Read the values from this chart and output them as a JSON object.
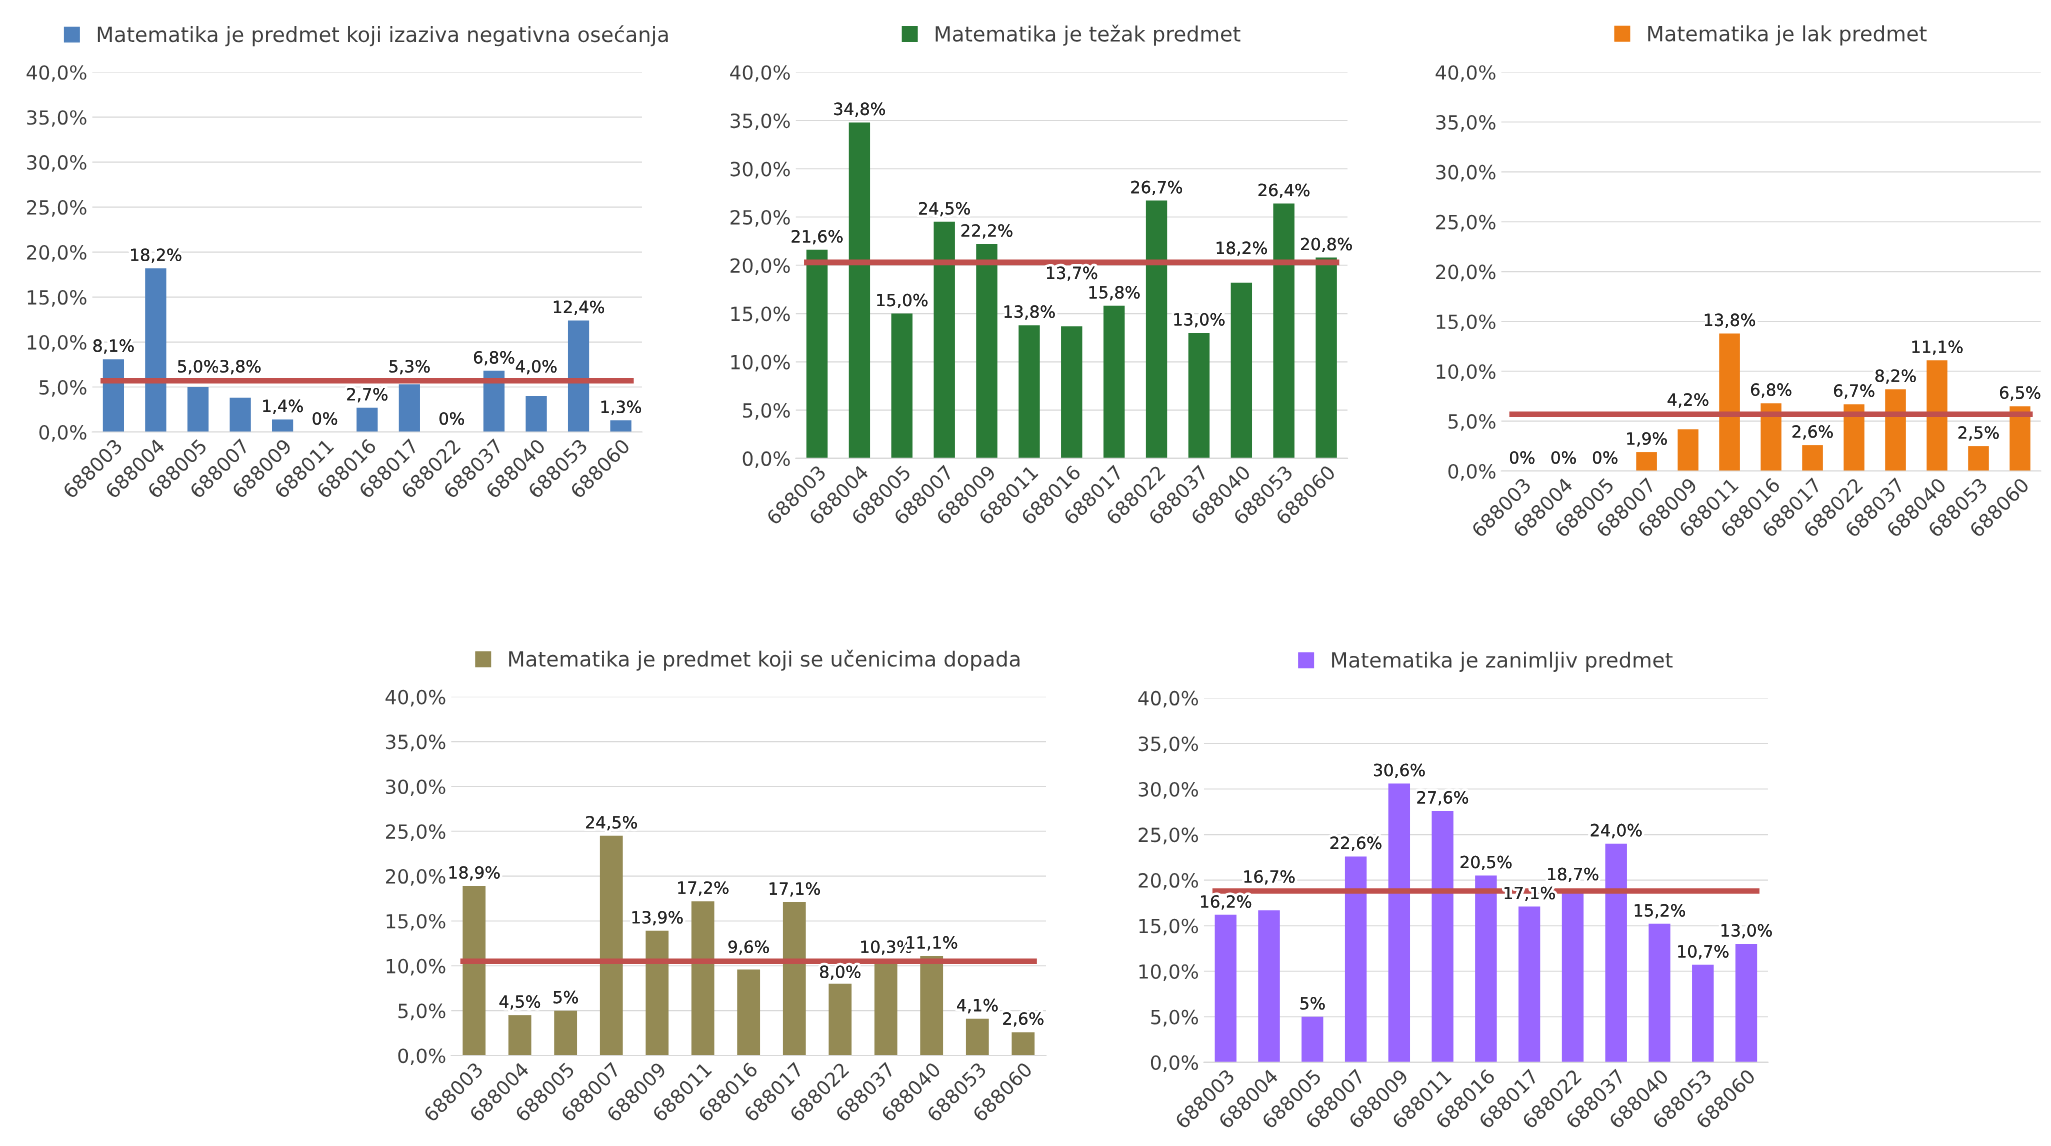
{
  "chart_data": [
    {
      "type": "bar",
      "categories": [
        "688003",
        "688004",
        "688005",
        "688007",
        "688009",
        "688011",
        "688016",
        "688017",
        "688022",
        "688037",
        "688040",
        "688053",
        "688060"
      ],
      "series": [
        {
          "name": "Matematika je predmet koji izaziva negativna osećanja",
          "color": "#4f81bd",
          "values": [
            8.1,
            18.2,
            5.0,
            3.8,
            1.4,
            0,
            2.7,
            5.3,
            0,
            6.8,
            4.0,
            12.4,
            1.3
          ],
          "value_labels": [
            "8,1%",
            "18,2%",
            "5,0%",
            "3,8%",
            "1,4%",
            "0%",
            "2,7%",
            "5,3%",
            "0%",
            "6,8%",
            "4,0%",
            "12,4%",
            "1,3%"
          ]
        }
      ],
      "ylim": [
        0,
        40
      ],
      "yticks": [
        {
          "value": 0,
          "label": "0,0%"
        },
        {
          "value": 5,
          "label": "5,0%"
        },
        {
          "value": 10,
          "label": "10,0%"
        },
        {
          "value": 15,
          "label": "15,0%"
        },
        {
          "value": 20,
          "label": "20,0%"
        },
        {
          "value": 25,
          "label": "25,0%"
        },
        {
          "value": 30,
          "label": "30,0%"
        },
        {
          "value": 35,
          "label": "35,0%"
        },
        {
          "value": 40,
          "label": "40,0%"
        }
      ],
      "grid": "y",
      "legend": "top",
      "ref_lines": [
        {
          "axis": "y",
          "value": 5.7,
          "color": "#c0504d"
        }
      ]
    },
    {
      "type": "bar",
      "categories": [
        "688003",
        "688004",
        "688005",
        "688007",
        "688009",
        "688011",
        "688016",
        "688017",
        "688022",
        "688037",
        "688040",
        "688053",
        "688060"
      ],
      "series": [
        {
          "name": "Matematika je težak predmet",
          "color": "#2a7b36",
          "values": [
            21.6,
            34.8,
            15.0,
            24.5,
            22.2,
            13.8,
            13.7,
            15.8,
            26.7,
            13.0,
            18.2,
            26.4,
            20.8
          ],
          "value_labels": [
            "21,6%",
            "34,8%",
            "15,0%",
            "24,5%",
            "22,2%",
            "13,8%",
            "13,7%",
            "15,8%",
            "26,7%",
            "13,0%",
            "18,2%",
            "26,4%",
            "20,8%"
          ]
        }
      ],
      "ylim": [
        0,
        40
      ],
      "yticks": [
        {
          "value": 0,
          "label": "0,0%"
        },
        {
          "value": 5,
          "label": "5,0%"
        },
        {
          "value": 10,
          "label": "10,0%"
        },
        {
          "value": 15,
          "label": "15,0%"
        },
        {
          "value": 20,
          "label": "20,0%"
        },
        {
          "value": 25,
          "label": "25,0%"
        },
        {
          "value": 30,
          "label": "30,0%"
        },
        {
          "value": 35,
          "label": "35,0%"
        },
        {
          "value": 40,
          "label": "40,0%"
        }
      ],
      "grid": "y",
      "legend": "top",
      "ref_lines": [
        {
          "axis": "y",
          "value": 20.3,
          "color": "#c0504d"
        }
      ]
    },
    {
      "type": "bar",
      "categories": [
        "688003",
        "688004",
        "688005",
        "688007",
        "688009",
        "688011",
        "688016",
        "688017",
        "688022",
        "688037",
        "688040",
        "688053",
        "688060"
      ],
      "series": [
        {
          "name": "Matematika je lak predmet",
          "color": "#ed7d15",
          "values": [
            0,
            0,
            0,
            1.9,
            4.2,
            13.8,
            6.8,
            2.6,
            6.7,
            8.2,
            11.1,
            2.5,
            6.5
          ],
          "value_labels": [
            "0%",
            "0%",
            "0%",
            "1,9%",
            "4,2%",
            "13,8%",
            "6,8%",
            "2,6%",
            "6,7%",
            "8,2%",
            "11,1%",
            "2,5%",
            "6,5%"
          ]
        }
      ],
      "ylim": [
        0,
        40
      ],
      "yticks": [
        {
          "value": 0,
          "label": "0,0%"
        },
        {
          "value": 5,
          "label": "5,0%"
        },
        {
          "value": 10,
          "label": "10,0%"
        },
        {
          "value": 15,
          "label": "15,0%"
        },
        {
          "value": 20,
          "label": "20,0%"
        },
        {
          "value": 25,
          "label": "25,0%"
        },
        {
          "value": 30,
          "label": "30,0%"
        },
        {
          "value": 35,
          "label": "35,0%"
        },
        {
          "value": 40,
          "label": "40,0%"
        }
      ],
      "grid": "y",
      "legend": "top",
      "ref_lines": [
        {
          "axis": "y",
          "value": 5.7,
          "color": "#c0504d"
        }
      ]
    },
    {
      "type": "bar",
      "categories": [
        "688003",
        "688004",
        "688005",
        "688007",
        "688009",
        "688011",
        "688016",
        "688017",
        "688022",
        "688037",
        "688040",
        "688053",
        "688060"
      ],
      "series": [
        {
          "name": "Matematika je predmet koji se učenicima dopada",
          "color": "#948a54",
          "values": [
            18.9,
            4.5,
            5,
            24.5,
            13.9,
            17.2,
            9.6,
            17.1,
            8.0,
            10.3,
            11.1,
            4.1,
            2.6
          ],
          "value_labels": [
            "18,9%",
            "4,5%",
            "5%",
            "24,5%",
            "13,9%",
            "17,2%",
            "9,6%",
            "17,1%",
            "8,0%",
            "10,3%",
            "11,1%",
            "4,1%",
            "2,6%"
          ]
        }
      ],
      "ylim": [
        0,
        40
      ],
      "yticks": [
        {
          "value": 0,
          "label": "0,0%"
        },
        {
          "value": 5,
          "label": "5,0%"
        },
        {
          "value": 10,
          "label": "10,0%"
        },
        {
          "value": 15,
          "label": "15,0%"
        },
        {
          "value": 20,
          "label": "20,0%"
        },
        {
          "value": 25,
          "label": "25,0%"
        },
        {
          "value": 30,
          "label": "30,0%"
        },
        {
          "value": 35,
          "label": "35,0%"
        },
        {
          "value": 40,
          "label": "40,0%"
        }
      ],
      "grid": "y",
      "legend": "top",
      "ref_lines": [
        {
          "axis": "y",
          "value": 10.5,
          "color": "#c0504d"
        }
      ]
    },
    {
      "type": "bar",
      "categories": [
        "688003",
        "688004",
        "688005",
        "688007",
        "688009",
        "688011",
        "688016",
        "688017",
        "688022",
        "688037",
        "688040",
        "688053",
        "688060"
      ],
      "series": [
        {
          "name": "Matematika je zanimljiv predmet",
          "color": "#9966ff",
          "values": [
            16.2,
            16.7,
            5,
            22.6,
            30.6,
            27.6,
            20.5,
            17.1,
            18.7,
            24.0,
            15.2,
            10.7,
            13.0
          ],
          "value_labels": [
            "16,2%",
            "16,7%",
            "5%",
            "22,6%",
            "30,6%",
            "27,6%",
            "20,5%",
            "17,1%",
            "18,7%",
            "24,0%",
            "15,2%",
            "10,7%",
            "13,0%"
          ]
        }
      ],
      "ylim": [
        0,
        40
      ],
      "yticks": [
        {
          "value": 0,
          "label": "0,0%"
        },
        {
          "value": 5,
          "label": "5,0%"
        },
        {
          "value": 10,
          "label": "10,0%"
        },
        {
          "value": 15,
          "label": "15,0%"
        },
        {
          "value": 20,
          "label": "20,0%"
        },
        {
          "value": 25,
          "label": "25,0%"
        },
        {
          "value": 30,
          "label": "30,0%"
        },
        {
          "value": 35,
          "label": "35,0%"
        },
        {
          "value": 40,
          "label": "40,0%"
        }
      ],
      "grid": "y",
      "legend": "top",
      "ref_lines": [
        {
          "axis": "y",
          "value": 18.8,
          "color": "#c0504d"
        }
      ]
    }
  ]
}
